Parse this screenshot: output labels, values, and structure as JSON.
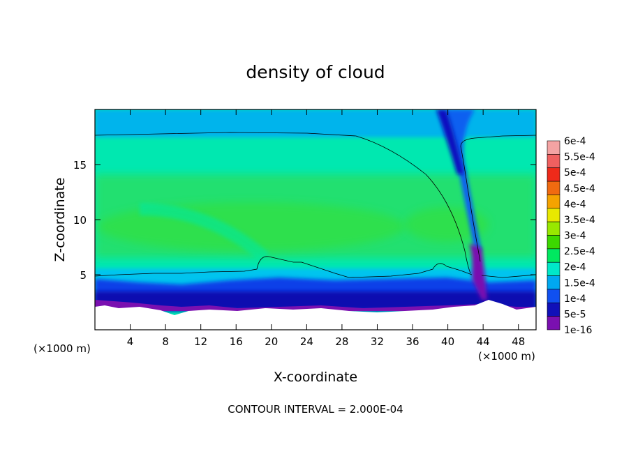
{
  "chart_data": {
    "type": "heatmap",
    "title": "density of cloud",
    "xlabel": "X-coordinate",
    "ylabel": "Z-coordinate",
    "x_unit_left": "(×1000 m)",
    "x_unit_right": "(×1000 m)",
    "footer": "CONTOUR INTERVAL = 2.000E-04",
    "xlim": [
      0,
      50
    ],
    "ylim": [
      0,
      20
    ],
    "x_ticks": [
      4,
      8,
      12,
      16,
      20,
      24,
      28,
      32,
      36,
      40,
      44,
      48
    ],
    "y_ticks": [
      5,
      10,
      15
    ],
    "colorbar": {
      "labels": [
        "6e-4",
        "5.5e-4",
        "5e-4",
        "4.5e-4",
        "4e-4",
        "3.5e-4",
        "3e-4",
        "2.5e-4",
        "2e-4",
        "1.5e-4",
        "1e-4",
        "5e-5",
        "1e-16"
      ],
      "colors": [
        "#f4a3a3",
        "#f06060",
        "#ee2a1a",
        "#f06a10",
        "#f5a300",
        "#e8e800",
        "#98e800",
        "#3cd800",
        "#00e860",
        "#00e8c8",
        "#00a8f0",
        "#1050f0",
        "#1010b8",
        "#7a10b0"
      ]
    },
    "cloud_field": {
      "cloud_base_z": [
        2.5,
        2.2,
        2.1,
        2.2,
        2.3,
        2.1,
        2.2,
        2.0,
        2.0,
        2.3,
        2.2,
        2.1,
        2.0,
        2.1,
        2.6,
        2.8
      ],
      "contour_top_z": [
        17.6,
        17.7,
        17.7,
        17.8,
        17.7,
        17.7,
        17.6,
        17.6
      ],
      "updraft_x": 43,
      "core_z_peak": 9.5,
      "core_value_peak": 0.00028
    }
  }
}
